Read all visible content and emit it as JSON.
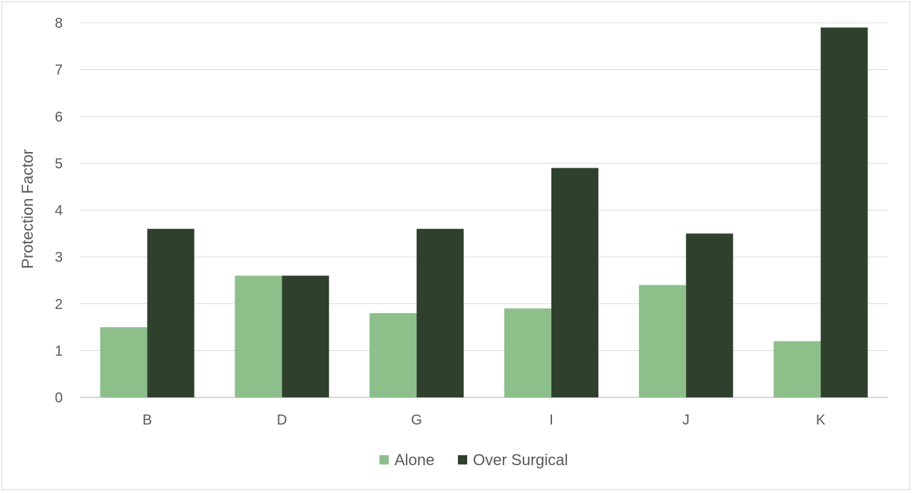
{
  "chart_data": {
    "type": "bar",
    "title": "",
    "xlabel": "",
    "ylabel": "Protection Factor",
    "ylim": [
      0,
      8
    ],
    "yticks": [
      0,
      1,
      2,
      3,
      4,
      5,
      6,
      7,
      8
    ],
    "grid": true,
    "legend_position": "bottom",
    "categories": [
      "B",
      "D",
      "G",
      "I",
      "J",
      "K"
    ],
    "series": [
      {
        "name": "Alone",
        "color": "#8dbf8b",
        "values": [
          1.5,
          2.6,
          1.8,
          1.9,
          2.4,
          1.2
        ]
      },
      {
        "name": "Over Surgical",
        "color": "#2f412d",
        "values": [
          3.6,
          2.6,
          3.6,
          4.9,
          3.5,
          7.9
        ]
      }
    ]
  }
}
